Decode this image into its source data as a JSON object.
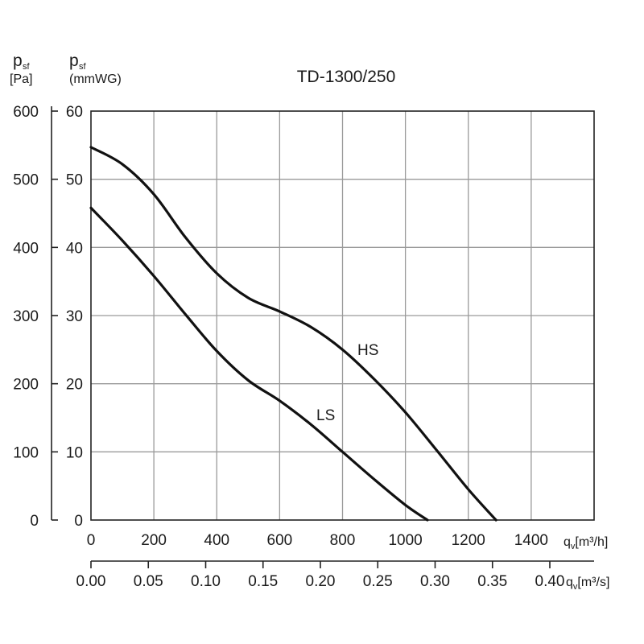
{
  "chart_data": {
    "type": "line",
    "title": "TD-1300/250",
    "y_label_pa": {
      "symbol": "p",
      "sub": "sf",
      "unit": "[Pa]"
    },
    "y_label_mmwg": {
      "symbol": "p",
      "sub": "sf",
      "unit": "(mmWG)"
    },
    "x_label_m3h": {
      "symbol": "q",
      "sub": "v",
      "unit": "[m³/h]"
    },
    "x_label_m3s": {
      "symbol": "q",
      "sub": "v",
      "unit": "[m³/s]"
    },
    "xlim": [
      0,
      1600
    ],
    "ylim_pa": [
      0,
      600
    ],
    "ylim_mmwg": [
      0,
      60
    ],
    "x_ticks_m3h": [
      "0",
      "200",
      "400",
      "600",
      "800",
      "1000",
      "1200",
      "1400"
    ],
    "x_ticks_m3s": [
      "0.00",
      "0.05",
      "0.10",
      "0.15",
      "0.20",
      "0.25",
      "0.30",
      "0.35",
      "0.40"
    ],
    "y_ticks_pa": [
      "0",
      "100",
      "200",
      "300",
      "400",
      "500",
      "600"
    ],
    "y_ticks_mmwg": [
      "0",
      "10",
      "20",
      "30",
      "40",
      "50",
      "60"
    ],
    "grid": true,
    "series": [
      {
        "name": "HS",
        "x": [
          0,
          100,
          200,
          300,
          400,
          500,
          600,
          700,
          800,
          900,
          1000,
          1100,
          1200,
          1288
        ],
        "y": [
          547,
          522,
          478,
          415,
          362,
          326,
          306,
          283,
          250,
          207,
          158,
          102,
          45,
          0
        ]
      },
      {
        "name": "LS",
        "x": [
          0,
          100,
          200,
          300,
          400,
          500,
          600,
          700,
          800,
          900,
          1000,
          1070
        ],
        "y": [
          458,
          410,
          358,
          302,
          248,
          205,
          175,
          140,
          100,
          60,
          22,
          0
        ]
      }
    ]
  }
}
